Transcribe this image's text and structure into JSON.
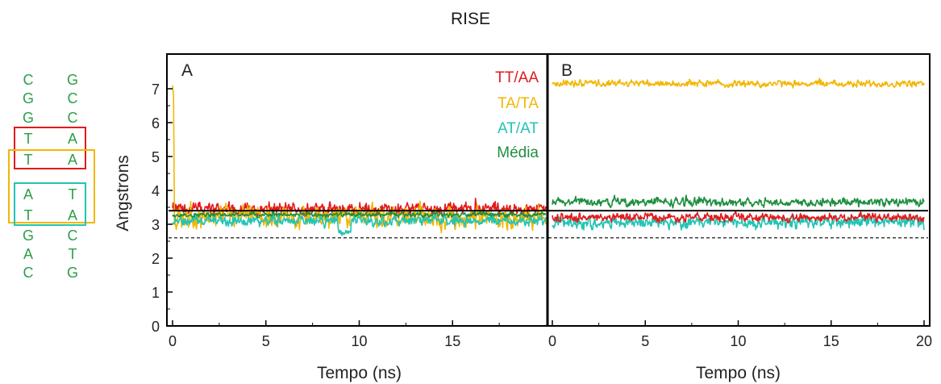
{
  "title": "RISE",
  "sequence": {
    "rows": [
      {
        "left": "C",
        "right": "G"
      },
      {
        "left": "G",
        "right": "C"
      },
      {
        "left": "G",
        "right": "C"
      },
      {
        "left": "T",
        "right": "A"
      },
      {
        "left": "T",
        "right": "A"
      },
      {
        "left": "A",
        "right": "T"
      },
      {
        "left": "T",
        "right": "A"
      },
      {
        "left": "G",
        "right": "C"
      },
      {
        "left": "A",
        "right": "T"
      },
      {
        "left": "C",
        "right": "G"
      }
    ],
    "text_color": "#2e9e48",
    "boxes": [
      {
        "label": "TT/AA",
        "rows": [
          3,
          4
        ],
        "color": "#e31a1c"
      },
      {
        "label": "TA/TA",
        "rows": [
          4,
          5
        ],
        "color": "#f2b705"
      },
      {
        "label": "AT/AT",
        "rows": [
          5,
          6
        ],
        "color": "#22c4b4"
      }
    ]
  },
  "chart_data": [
    {
      "type": "line",
      "panel_label": "A",
      "xlabel": "Tempo (ns)",
      "ylabel": "Angstrons",
      "xlim": [
        0,
        20
      ],
      "ylim": [
        0,
        7.5
      ],
      "xticks": [
        0,
        5,
        10,
        15
      ],
      "yticks": [
        0,
        1,
        2,
        3,
        4,
        5,
        6,
        7
      ],
      "reference_lines": [
        {
          "y": 3.4,
          "style": "solid",
          "color": "#000000"
        },
        {
          "y": 2.6,
          "style": "dashed",
          "color": "#000000"
        }
      ],
      "legend": {
        "position": "top-right"
      },
      "series": [
        {
          "name": "TT/AA",
          "color": "#e31a1c",
          "mean": 3.45,
          "noise": 0.28,
          "spike_start": null
        },
        {
          "name": "TA/TA",
          "color": "#f2b705",
          "mean": 3.2,
          "noise": 0.45,
          "spike_start": 7.1
        },
        {
          "name": "AT/AT",
          "color": "#22c4b4",
          "mean": 3.1,
          "noise": 0.22,
          "spike_start": null,
          "dip": {
            "x": 9.2,
            "y": 2.75
          }
        },
        {
          "name": "Média",
          "color": "#1e8f3e",
          "mean": 3.28,
          "noise": 0.1,
          "spike_start": null
        }
      ]
    },
    {
      "type": "line",
      "panel_label": "B",
      "xlabel": "Tempo (ns)",
      "ylabel": "Angstrons",
      "xlim": [
        0,
        20
      ],
      "ylim": [
        0,
        7.5
      ],
      "xticks": [
        0,
        5,
        10,
        15,
        20
      ],
      "yticks": [
        0,
        1,
        2,
        3,
        4,
        5,
        6,
        7
      ],
      "reference_lines": [
        {
          "y": 3.4,
          "style": "solid",
          "color": "#000000"
        },
        {
          "y": 2.6,
          "style": "dashed",
          "color": "#000000"
        }
      ],
      "series": [
        {
          "name": "Média",
          "color": "#1e8f3e",
          "mean": 3.65,
          "noise": 0.18
        },
        {
          "name": "AT/AT",
          "color": "#22c4b4",
          "mean": 3.05,
          "noise": 0.25
        },
        {
          "name": "TT/AA",
          "color": "#e31a1c",
          "mean": 3.2,
          "noise": 0.18
        },
        {
          "name": "TA/TA",
          "color": "#f2b705",
          "mean": 7.15,
          "noise": 0.15
        }
      ]
    }
  ]
}
